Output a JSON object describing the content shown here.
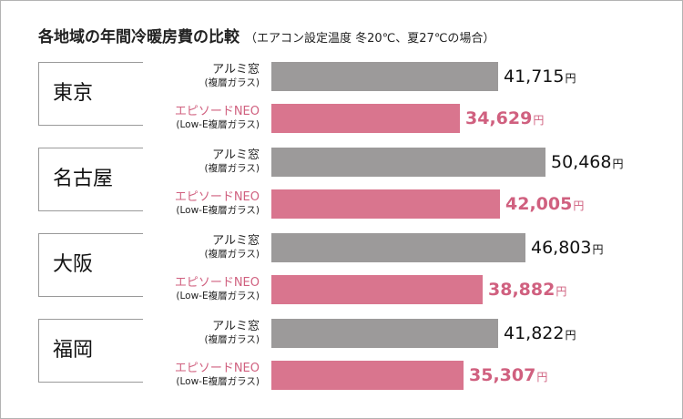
{
  "title": "各地域の年間冷暖房費の比較",
  "subtitle": "（エアコン設定温度 冬20℃、夏27℃の場合）",
  "colors": {
    "alum": "#9c9a9a",
    "epi": "#d9758e",
    "accent_text": "#d0607f"
  },
  "chart_data": {
    "type": "bar",
    "orientation": "horizontal",
    "title": "各地域の年間冷暖房費の比較",
    "subtitle": "（エアコン設定温度 冬20℃、夏27℃の場合）",
    "unit": "円",
    "categories": [
      "東京",
      "名古屋",
      "大阪",
      "福岡"
    ],
    "series": [
      {
        "name": "アルミ窓",
        "note": "(複層ガラス)",
        "values": [
          41715,
          50468,
          46803,
          41822
        ]
      },
      {
        "name": "エピソードNEO",
        "note": "(Low-E複層ガラス)",
        "values": [
          34629,
          42005,
          38882,
          35307
        ]
      }
    ],
    "value_labels": {
      "alum": [
        "41,715",
        "50,468",
        "46,803",
        "41,822"
      ],
      "epi": [
        "34,629",
        "42,005",
        "38,882",
        "35,307"
      ]
    },
    "grid": false,
    "legend": "none"
  }
}
